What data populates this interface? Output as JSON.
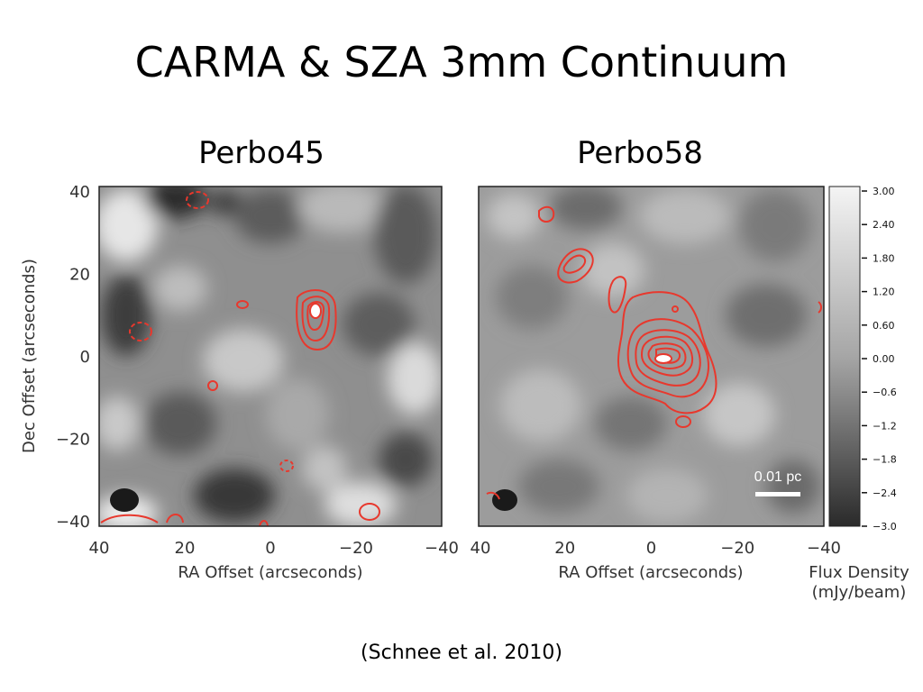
{
  "slide": {
    "title": "CARMA & SZA 3mm Continuum",
    "citation": "(Schnee et al. 2010)"
  },
  "panels": [
    {
      "title": "Perbo45",
      "x_ticks": [
        "40",
        "20",
        "0",
        "−20",
        "−40"
      ],
      "y_ticks": [
        "40",
        "20",
        "0",
        "−20",
        "−40"
      ],
      "xlabel": "RA Offset (arcseconds)",
      "ylabel": "Dec Offset (arcseconds)"
    },
    {
      "title": "Perbo58",
      "x_ticks": [
        "40",
        "20",
        "0",
        "−20",
        "−40"
      ],
      "xlabel": "RA Offset (arcseconds)",
      "scale_bar_label": "0.01 pc"
    }
  ],
  "colorbar": {
    "ticks": [
      "3.00",
      "2.40",
      "1.80",
      "1.20",
      "0.60",
      "0.00",
      "−0.6",
      "−1.2",
      "−1.8",
      "−2.4",
      "−3.0"
    ],
    "label_line1": "Flux Density",
    "label_line2": "(mJy/beam)",
    "range": [
      -3.0,
      3.0
    ]
  },
  "colors": {
    "contour": "#e8382d",
    "map_gray": "#8c8c8c"
  }
}
